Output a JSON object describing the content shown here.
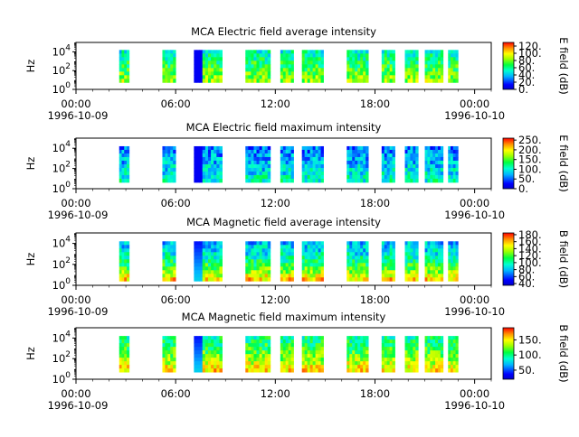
{
  "chart_data": [
    {
      "type": "heatmap",
      "title": "MCA  Electric field average intensity",
      "ylabel": "Hz",
      "y_scale": "log",
      "ylim": [
        1,
        100000
      ],
      "y_ticks": [
        {
          "base": "10",
          "exp": "0"
        },
        {
          "base": "10",
          "exp": "2"
        },
        {
          "base": "10",
          "exp": "4"
        }
      ],
      "x_ticks": [
        "00:00",
        "06:00",
        "12:00",
        "18:00",
        "00:00"
      ],
      "x_dates": [
        "1996-10-09",
        "1996-10-10"
      ],
      "xlim": [
        "1996-10-09 00:00",
        "1996-10-10 01:00"
      ],
      "colorbar": {
        "label": "E field (dB)",
        "ticks": [
          "0.",
          "20.",
          "40.",
          "60.",
          "80.",
          "100.",
          "120."
        ],
        "range": [
          0,
          130
        ]
      },
      "data_intervals_hours": [
        [
          2.6,
          3.2
        ],
        [
          5.2,
          6.0
        ],
        [
          7.1,
          8.8
        ],
        [
          10.2,
          11.7
        ],
        [
          12.3,
          13.1
        ],
        [
          13.6,
          14.9
        ],
        [
          16.3,
          17.6
        ],
        [
          18.4,
          19.2
        ],
        [
          19.8,
          20.6
        ],
        [
          21.0,
          22.1
        ],
        [
          22.4,
          23.0
        ]
      ]
    },
    {
      "type": "heatmap",
      "title": "MCA  Electric field maximum intensity",
      "ylabel": "Hz",
      "y_scale": "log",
      "ylim": [
        1,
        100000
      ],
      "y_ticks": [
        {
          "base": "10",
          "exp": "0"
        },
        {
          "base": "10",
          "exp": "2"
        },
        {
          "base": "10",
          "exp": "4"
        }
      ],
      "x_ticks": [
        "00:00",
        "06:00",
        "12:00",
        "18:00",
        "00:00"
      ],
      "x_dates": [
        "1996-10-09",
        "1996-10-10"
      ],
      "xlim": [
        "1996-10-09 00:00",
        "1996-10-10 01:00"
      ],
      "colorbar": {
        "label": "E field (dB)",
        "ticks": [
          "0.",
          "50.",
          "100.",
          "150.",
          "200.",
          "250."
        ],
        "range": [
          0,
          260
        ]
      },
      "data_intervals_hours": [
        [
          2.6,
          3.2
        ],
        [
          5.2,
          6.0
        ],
        [
          7.1,
          8.8
        ],
        [
          10.2,
          11.7
        ],
        [
          12.3,
          13.1
        ],
        [
          13.6,
          14.9
        ],
        [
          16.3,
          17.6
        ],
        [
          18.4,
          19.2
        ],
        [
          19.8,
          20.6
        ],
        [
          21.0,
          22.1
        ],
        [
          22.4,
          23.0
        ]
      ]
    },
    {
      "type": "heatmap",
      "title": "MCA  Magnetic field average intensity",
      "ylabel": "Hz",
      "y_scale": "log",
      "ylim": [
        1,
        100000
      ],
      "y_ticks": [
        {
          "base": "10",
          "exp": "0"
        },
        {
          "base": "10",
          "exp": "2"
        },
        {
          "base": "10",
          "exp": "4"
        }
      ],
      "x_ticks": [
        "00:00",
        "06:00",
        "12:00",
        "18:00",
        "00:00"
      ],
      "x_dates": [
        "1996-10-09",
        "1996-10-10"
      ],
      "xlim": [
        "1996-10-09 00:00",
        "1996-10-10 01:00"
      ],
      "colorbar": {
        "label": "B field (dB)",
        "ticks": [
          "40.",
          "60.",
          "80.",
          "100.",
          "120.",
          "140.",
          "160.",
          "180."
        ],
        "range": [
          35,
          185
        ]
      },
      "data_intervals_hours": [
        [
          2.6,
          3.2
        ],
        [
          5.2,
          6.0
        ],
        [
          7.1,
          8.8
        ],
        [
          10.2,
          11.7
        ],
        [
          12.3,
          13.1
        ],
        [
          13.6,
          14.9
        ],
        [
          16.3,
          17.6
        ],
        [
          18.4,
          19.2
        ],
        [
          19.8,
          20.6
        ],
        [
          21.0,
          22.1
        ],
        [
          22.4,
          23.0
        ]
      ]
    },
    {
      "type": "heatmap",
      "title": "MCA  Magnetic field maximum intensity",
      "ylabel": "Hz",
      "y_scale": "log",
      "ylim": [
        1,
        100000
      ],
      "y_ticks": [
        {
          "base": "10",
          "exp": "0"
        },
        {
          "base": "10",
          "exp": "2"
        },
        {
          "base": "10",
          "exp": "4"
        }
      ],
      "x_ticks": [
        "00:00",
        "06:00",
        "12:00",
        "18:00",
        "00:00"
      ],
      "x_dates": [
        "1996-10-09",
        "1996-10-10"
      ],
      "xlim": [
        "1996-10-09 00:00",
        "1996-10-10 01:00"
      ],
      "colorbar": {
        "label": "B field (dB)",
        "ticks": [
          "50.",
          "100.",
          "150."
        ],
        "range": [
          20,
          190
        ]
      },
      "data_intervals_hours": [
        [
          2.6,
          3.2
        ],
        [
          5.2,
          6.0
        ],
        [
          7.1,
          8.8
        ],
        [
          10.2,
          11.7
        ],
        [
          12.3,
          13.1
        ],
        [
          13.6,
          14.9
        ],
        [
          16.3,
          17.6
        ],
        [
          18.4,
          19.2
        ],
        [
          19.8,
          20.6
        ],
        [
          21.0,
          22.1
        ],
        [
          22.4,
          23.0
        ]
      ]
    }
  ]
}
